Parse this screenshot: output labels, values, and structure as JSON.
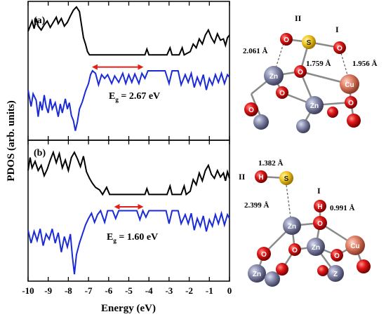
{
  "chart_data": [
    {
      "type": "line",
      "panel_label": "(a)",
      "gap_annotation": "E",
      "gap_subscript": "g",
      "gap_value": " = 2.67 eV",
      "gap_arrow_x": [
        -6.9,
        -4.2
      ],
      "colors": {
        "upper": "#000000",
        "lower": "#1a2bd6",
        "arrow": "#e0201b"
      },
      "series": [
        {
          "name": "",
          "color": "#000000",
          "points": [
            [
              -10,
              0.62
            ],
            [
              -9.9,
              0.7
            ],
            [
              -9.8,
              0.78
            ],
            [
              -9.7,
              0.66
            ],
            [
              -9.6,
              0.82
            ],
            [
              -9.5,
              0.7
            ],
            [
              -9.35,
              0.64
            ],
            [
              -9.2,
              0.72
            ],
            [
              -9.05,
              0.78
            ],
            [
              -8.9,
              0.68
            ],
            [
              -8.75,
              0.76
            ],
            [
              -8.6,
              0.84
            ],
            [
              -8.5,
              0.74
            ],
            [
              -8.35,
              0.82
            ],
            [
              -8.2,
              0.7
            ],
            [
              -8.05,
              0.76
            ],
            [
              -7.9,
              0.86
            ],
            [
              -7.75,
              0.95
            ],
            [
              -7.6,
              1.0
            ],
            [
              -7.45,
              0.93
            ],
            [
              -7.35,
              0.72
            ],
            [
              -7.25,
              0.52
            ],
            [
              -7.15,
              0.42
            ],
            [
              -7.05,
              0.3
            ],
            [
              -6.95,
              0.25
            ],
            [
              -4.2,
              0.25
            ],
            [
              -4.1,
              0.34
            ],
            [
              -4.0,
              0.25
            ],
            [
              -3.1,
              0.25
            ],
            [
              -2.95,
              0.36
            ],
            [
              -2.85,
              0.25
            ],
            [
              -2.5,
              0.25
            ],
            [
              -2.35,
              0.36
            ],
            [
              -2.25,
              0.25
            ],
            [
              -1.95,
              0.3
            ],
            [
              -1.8,
              0.42
            ],
            [
              -1.65,
              0.36
            ],
            [
              -1.5,
              0.5
            ],
            [
              -1.35,
              0.42
            ],
            [
              -1.2,
              0.56
            ],
            [
              -1.05,
              0.64
            ],
            [
              -0.9,
              0.52
            ],
            [
              -0.75,
              0.44
            ],
            [
              -0.6,
              0.58
            ],
            [
              -0.45,
              0.48
            ],
            [
              -0.3,
              0.5
            ],
            [
              -0.2,
              0.4
            ],
            [
              -0.1,
              0.52
            ],
            [
              0,
              0.56
            ]
          ]
        },
        {
          "name": "",
          "color": "#1a2bd6",
          "points": [
            [
              -10,
              -0.3
            ],
            [
              -9.85,
              -0.56
            ],
            [
              -9.75,
              -0.36
            ],
            [
              -9.6,
              -0.46
            ],
            [
              -9.5,
              -0.72
            ],
            [
              -9.4,
              -0.48
            ],
            [
              -9.3,
              -0.62
            ],
            [
              -9.2,
              -0.38
            ],
            [
              -9.1,
              -0.56
            ],
            [
              -9.0,
              -0.66
            ],
            [
              -8.9,
              -0.44
            ],
            [
              -8.8,
              -0.6
            ],
            [
              -8.65,
              -0.5
            ],
            [
              -8.5,
              -0.72
            ],
            [
              -8.4,
              -0.52
            ],
            [
              -8.3,
              -0.66
            ],
            [
              -8.15,
              -0.44
            ],
            [
              -8.05,
              -0.6
            ],
            [
              -7.95,
              -0.5
            ],
            [
              -7.85,
              -0.7
            ],
            [
              -7.75,
              -0.78
            ],
            [
              -7.65,
              -0.94
            ],
            [
              -7.55,
              -0.8
            ],
            [
              -7.45,
              -0.6
            ],
            [
              -7.3,
              -0.48
            ],
            [
              -7.15,
              -0.32
            ],
            [
              -7.0,
              -0.2
            ],
            [
              -6.9,
              -0.06
            ],
            [
              -6.8,
              0.0
            ],
            [
              -6.65,
              -0.04
            ],
            [
              -6.5,
              -0.22
            ],
            [
              -6.35,
              -0.06
            ],
            [
              -6.2,
              -0.12
            ],
            [
              -6.05,
              -0.06
            ],
            [
              -5.85,
              -0.2
            ],
            [
              -5.7,
              -0.08
            ],
            [
              -5.5,
              -0.18
            ],
            [
              -5.3,
              -0.04
            ],
            [
              -5.15,
              -0.2
            ],
            [
              -5.0,
              -0.06
            ],
            [
              -4.85,
              -0.18
            ],
            [
              -4.7,
              -0.05
            ],
            [
              -4.5,
              -0.2
            ],
            [
              -4.35,
              -0.04
            ],
            [
              -4.2,
              -0.12
            ],
            [
              -4.05,
              0.0
            ],
            [
              -3.2,
              0.0
            ],
            [
              -3.0,
              -0.2
            ],
            [
              -2.85,
              0.0
            ],
            [
              -2.55,
              0.0
            ],
            [
              -2.4,
              -0.22
            ],
            [
              -2.2,
              -0.06
            ],
            [
              -2.05,
              -0.18
            ],
            [
              -1.9,
              -0.04
            ],
            [
              -1.75,
              -0.26
            ],
            [
              -1.6,
              -0.1
            ],
            [
              -1.45,
              -0.22
            ],
            [
              -1.3,
              -0.06
            ],
            [
              -1.15,
              -0.3
            ],
            [
              -1.0,
              -0.12
            ],
            [
              -0.85,
              -0.22
            ],
            [
              -0.7,
              -0.06
            ],
            [
              -0.55,
              -0.18
            ],
            [
              -0.4,
              -0.04
            ],
            [
              -0.25,
              -0.2
            ],
            [
              -0.1,
              -0.06
            ],
            [
              0,
              -0.1
            ]
          ]
        }
      ]
    },
    {
      "type": "line",
      "panel_label": "(b)",
      "gap_annotation": "E",
      "gap_subscript": "g",
      "gap_value": " = 1.60 eV",
      "gap_arrow_x": [
        -5.8,
        -4.2
      ],
      "colors": {
        "upper": "#000000",
        "lower": "#1a2bd6",
        "arrow": "#e0201b"
      },
      "series": [
        {
          "name": "",
          "color": "#000000",
          "points": [
            [
              -10,
              0.62
            ],
            [
              -9.9,
              0.82
            ],
            [
              -9.8,
              0.66
            ],
            [
              -9.65,
              0.76
            ],
            [
              -9.5,
              0.62
            ],
            [
              -9.35,
              0.7
            ],
            [
              -9.2,
              0.54
            ],
            [
              -9.05,
              0.64
            ],
            [
              -8.9,
              0.78
            ],
            [
              -8.75,
              0.9
            ],
            [
              -8.6,
              0.74
            ],
            [
              -8.45,
              0.88
            ],
            [
              -8.3,
              0.66
            ],
            [
              -8.15,
              0.78
            ],
            [
              -8.0,
              0.62
            ],
            [
              -7.85,
              0.82
            ],
            [
              -7.7,
              0.9
            ],
            [
              -7.55,
              0.8
            ],
            [
              -7.4,
              0.68
            ],
            [
              -7.25,
              0.84
            ],
            [
              -7.1,
              0.6
            ],
            [
              -6.95,
              0.5
            ],
            [
              -6.8,
              0.42
            ],
            [
              -6.65,
              0.36
            ],
            [
              -6.45,
              0.32
            ],
            [
              -6.3,
              0.25
            ],
            [
              -6.1,
              0.36
            ],
            [
              -5.95,
              0.25
            ],
            [
              -4.2,
              0.25
            ],
            [
              -4.1,
              0.34
            ],
            [
              -4.0,
              0.25
            ],
            [
              -3.1,
              0.25
            ],
            [
              -2.95,
              0.38
            ],
            [
              -2.85,
              0.25
            ],
            [
              -2.4,
              0.25
            ],
            [
              -2.25,
              0.38
            ],
            [
              -2.15,
              0.25
            ],
            [
              -1.95,
              0.3
            ],
            [
              -1.8,
              0.48
            ],
            [
              -1.65,
              0.4
            ],
            [
              -1.5,
              0.58
            ],
            [
              -1.35,
              0.46
            ],
            [
              -1.2,
              0.62
            ],
            [
              -1.05,
              0.7
            ],
            [
              -0.9,
              0.56
            ],
            [
              -0.75,
              0.5
            ],
            [
              -0.6,
              0.62
            ],
            [
              -0.45,
              0.52
            ],
            [
              -0.3,
              0.58
            ],
            [
              -0.2,
              0.46
            ],
            [
              -0.1,
              0.6
            ],
            [
              0,
              0.5
            ]
          ]
        },
        {
          "name": "",
          "color": "#1a2bd6",
          "points": [
            [
              -10,
              -0.3
            ],
            [
              -9.85,
              -0.5
            ],
            [
              -9.7,
              -0.32
            ],
            [
              -9.55,
              -0.46
            ],
            [
              -9.4,
              -0.28
            ],
            [
              -9.25,
              -0.54
            ],
            [
              -9.1,
              -0.36
            ],
            [
              -8.95,
              -0.44
            ],
            [
              -8.8,
              -0.28
            ],
            [
              -8.65,
              -0.5
            ],
            [
              -8.5,
              -0.34
            ],
            [
              -8.35,
              -0.64
            ],
            [
              -8.2,
              -0.4
            ],
            [
              -8.05,
              -0.56
            ],
            [
              -7.9,
              -0.36
            ],
            [
              -7.8,
              -0.7
            ],
            [
              -7.7,
              -0.98
            ],
            [
              -7.6,
              -0.68
            ],
            [
              -7.45,
              -0.5
            ],
            [
              -7.3,
              -0.36
            ],
            [
              -7.15,
              -0.22
            ],
            [
              -7.0,
              -0.12
            ],
            [
              -6.85,
              -0.04
            ],
            [
              -6.7,
              -0.18
            ],
            [
              -6.55,
              -0.06
            ],
            [
              -6.4,
              0.0
            ],
            [
              -6.2,
              -0.18
            ],
            [
              -6.05,
              0.0
            ],
            [
              -5.8,
              0.0
            ],
            [
              -5.65,
              -0.12
            ],
            [
              -5.5,
              0.0
            ],
            [
              -4.6,
              0.0
            ],
            [
              -4.45,
              -0.14
            ],
            [
              -4.3,
              0.0
            ],
            [
              -4.15,
              -0.1
            ],
            [
              -4.0,
              0.0
            ],
            [
              -3.15,
              0.0
            ],
            [
              -3.0,
              -0.2
            ],
            [
              -2.85,
              0.0
            ],
            [
              -2.55,
              0.0
            ],
            [
              -2.4,
              -0.2
            ],
            [
              -2.2,
              -0.06
            ],
            [
              -2.05,
              -0.2
            ],
            [
              -1.9,
              -0.04
            ],
            [
              -1.75,
              -0.3
            ],
            [
              -1.6,
              -0.12
            ],
            [
              -1.45,
              -0.24
            ],
            [
              -1.3,
              -0.08
            ],
            [
              -1.15,
              -0.32
            ],
            [
              -1.0,
              -0.14
            ],
            [
              -0.85,
              -0.24
            ],
            [
              -0.7,
              -0.06
            ],
            [
              -0.55,
              -0.2
            ],
            [
              -0.4,
              -0.04
            ],
            [
              -0.25,
              -0.22
            ],
            [
              -0.1,
              -0.06
            ],
            [
              0,
              -0.12
            ]
          ]
        }
      ]
    }
  ],
  "axes": {
    "xlabel": "Energy (eV)",
    "ylabel": "PDOS (arb. units)",
    "xlim": [
      -10,
      0
    ],
    "xticks": [
      "-10",
      "-9",
      "-8",
      "-7",
      "-6",
      "-5",
      "-4",
      "-3",
      "-2",
      "-1",
      "0"
    ]
  },
  "structure_a": {
    "site_labels": {
      "II": "II",
      "I": "I"
    },
    "distances": {
      "d1": "2.061 Å",
      "d2": "1.759 Å",
      "d3": "1.956 Å"
    },
    "atoms": {
      "S": "S",
      "O": "O",
      "Zn": "Zn",
      "Cu": "Cu"
    }
  },
  "structure_b": {
    "site_labels": {
      "II": "II",
      "I": "I"
    },
    "distances": {
      "d1": "1.382 Å",
      "d2": "2.399 Å",
      "d3": "0.991 Å"
    },
    "atoms": {
      "H": "H",
      "S": "S",
      "O": "O",
      "Zn": "Zn",
      "Cu": "Cu",
      "Zn_partial": "Z"
    }
  },
  "colors": {
    "oxygen": "#d90f0f",
    "zinc": "#7a7d9c",
    "copper": "#d97a66",
    "sulfur": "#e8c020",
    "bond": "#888888"
  }
}
